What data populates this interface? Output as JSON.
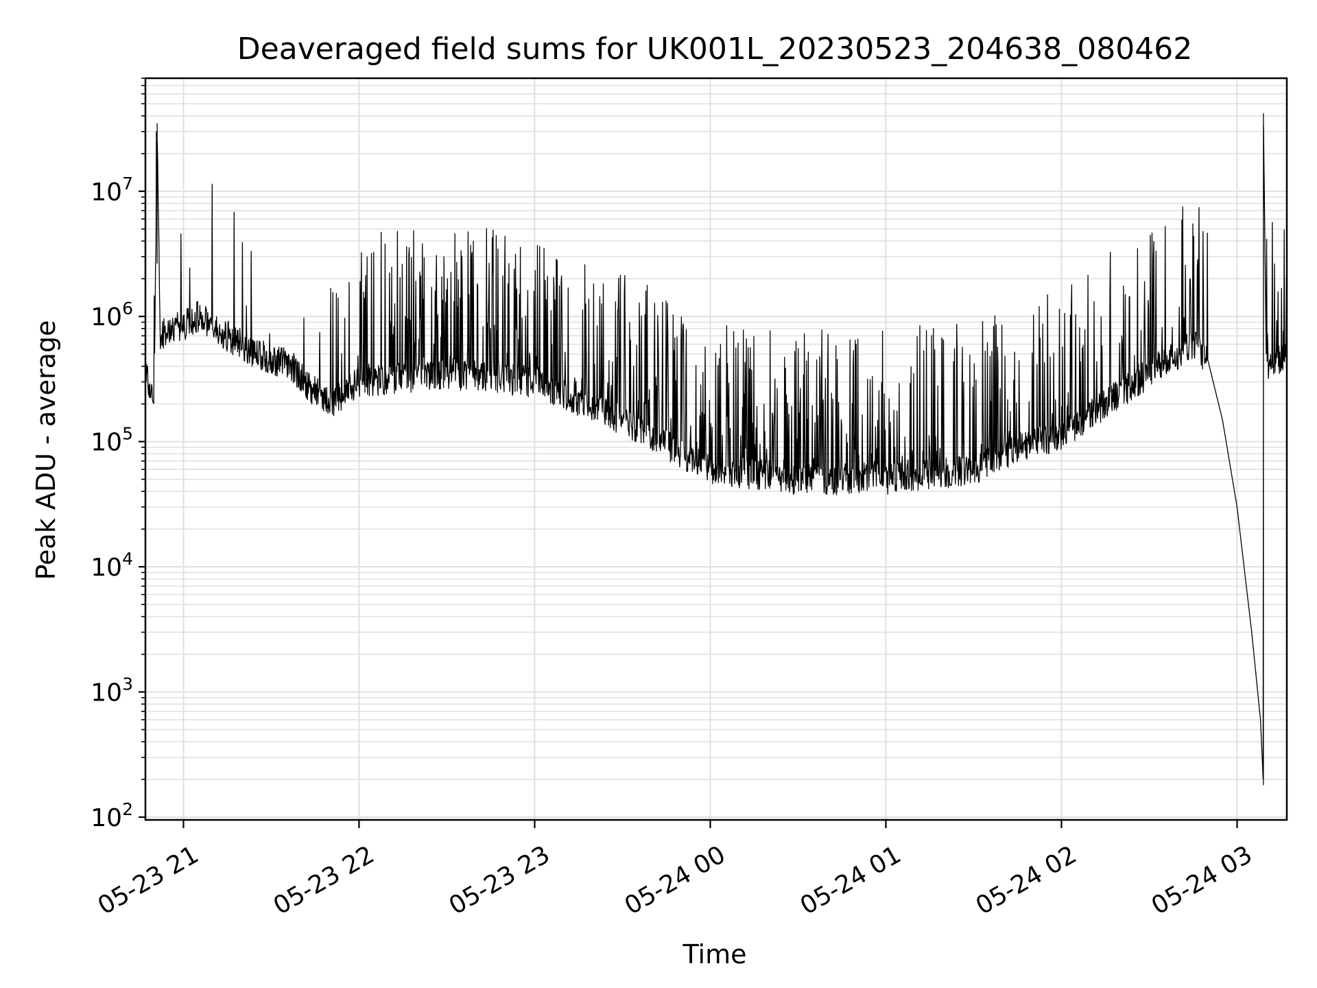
{
  "chart_data": {
    "type": "line",
    "title": "Deaveraged field sums for UK001L_20230523_204638_080462",
    "xlabel": "Time",
    "ylabel": "Peak ADU - average",
    "x_scale": "time",
    "y_scale": "log",
    "xlim": [
      "2023-05-23 20:47",
      "2023-05-24 03:17"
    ],
    "ylim": [
      95,
      80000000
    ],
    "x_ticks": [
      "2023-05-23 21:00",
      "2023-05-23 22:00",
      "2023-05-23 23:00",
      "2023-05-24 00:00",
      "2023-05-24 01:00",
      "2023-05-24 02:00",
      "2023-05-24 03:00"
    ],
    "x_tick_labels": [
      "05-23 21",
      "05-23 22",
      "05-23 23",
      "05-24 00",
      "05-24 01",
      "05-24 02",
      "05-24 03"
    ],
    "y_ticks": [
      100,
      1000,
      10000,
      100000,
      1000000,
      10000000
    ],
    "y_tick_labels": [
      {
        "base": "10",
        "exp": "2"
      },
      {
        "base": "10",
        "exp": "3"
      },
      {
        "base": "10",
        "exp": "4"
      },
      {
        "base": "10",
        "exp": "5"
      },
      {
        "base": "10",
        "exp": "6"
      },
      {
        "base": "10",
        "exp": "7"
      }
    ],
    "grid": true,
    "grid_minor": true,
    "line_color": "#000000",
    "grid_color": "#e0e0e0",
    "series": [
      {
        "values_approx": [
          {
            "x": "2023-05-23 20:47",
            "y": 350000
          },
          {
            "x": "2023-05-23 20:50",
            "y": 200000
          },
          {
            "x": "2023-05-23 20:51",
            "y": 35000000
          },
          {
            "x": "2023-05-23 20:52",
            "y": 700000
          },
          {
            "x": "2023-05-23 21:00",
            "y": 850000
          },
          {
            "x": "2023-05-23 21:05",
            "y": 1000000
          },
          {
            "x": "2023-05-23 21:15",
            "y": 700000
          },
          {
            "x": "2023-05-23 21:25",
            "y": 500000
          },
          {
            "x": "2023-05-23 21:35",
            "y": 420000
          },
          {
            "x": "2023-05-23 21:45",
            "y": 250000
          },
          {
            "x": "2023-05-23 21:50",
            "y": 200000
          },
          {
            "x": "2023-05-23 22:00",
            "y": 300000
          },
          {
            "x": "2023-05-23 22:30",
            "y": 350000
          },
          {
            "x": "2023-05-23 23:00",
            "y": 300000
          },
          {
            "x": "2023-05-23 23:30",
            "y": 150000
          },
          {
            "x": "2023-05-24 00:00",
            "y": 60000
          },
          {
            "x": "2023-05-24 00:30",
            "y": 50000
          },
          {
            "x": "2023-05-24 01:00",
            "y": 50000
          },
          {
            "x": "2023-05-24 01:30",
            "y": 60000
          },
          {
            "x": "2023-05-24 01:45",
            "y": 90000
          },
          {
            "x": "2023-05-24 02:00",
            "y": 110000
          },
          {
            "x": "2023-05-24 02:15",
            "y": 200000
          },
          {
            "x": "2023-05-24 02:30",
            "y": 350000
          },
          {
            "x": "2023-05-24 02:45",
            "y": 600000
          },
          {
            "x": "2023-05-24 02:50",
            "y": 450000
          },
          {
            "x": "2023-05-24 02:55",
            "y": 150000
          },
          {
            "x": "2023-05-24 03:00",
            "y": 30000
          },
          {
            "x": "2023-05-24 03:05",
            "y": 3000
          },
          {
            "x": "2023-05-24 03:08",
            "y": 600
          },
          {
            "x": "2023-05-24 03:09",
            "y": 180
          },
          {
            "x": "2023-05-24 03:09",
            "y": 42000000
          },
          {
            "x": "2023-05-24 03:10",
            "y": 400000
          },
          {
            "x": "2023-05-24 03:17",
            "y": 500000
          }
        ]
      }
    ]
  }
}
